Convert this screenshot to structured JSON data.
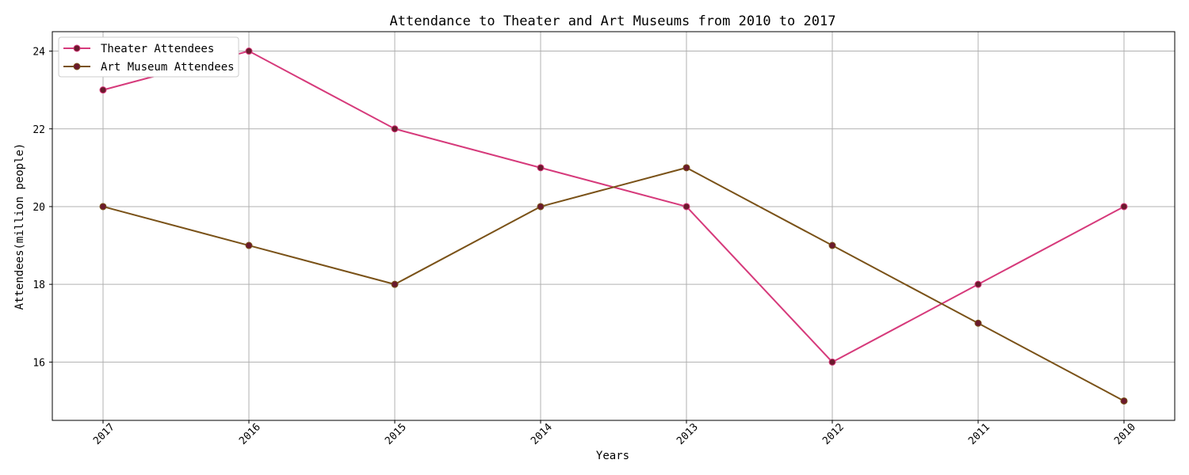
{
  "chart_data": {
    "type": "line",
    "title": "Attendance to Theater and Art Museums from 2010 to 2017",
    "xlabel": "Years",
    "ylabel": "Attendees(million people)",
    "categories": [
      "2017",
      "2016",
      "2015",
      "2014",
      "2013",
      "2012",
      "2011",
      "2010"
    ],
    "yticks": [
      16,
      18,
      20,
      22,
      24
    ],
    "ylim": [
      14.5,
      24.5
    ],
    "grid": true,
    "legend_position": "top-left",
    "series": [
      {
        "name": "Theater Attendees",
        "color": "#d63a7b",
        "marker_color": "#6b1a2d",
        "values": [
          23,
          24,
          22,
          21,
          20,
          16,
          18,
          20
        ]
      },
      {
        "name": "Art Museum Attendees",
        "color": "#7a5218",
        "marker_color": "#6b1a2d",
        "values": [
          20,
          19,
          18,
          20,
          21,
          19,
          17,
          15
        ]
      }
    ]
  }
}
